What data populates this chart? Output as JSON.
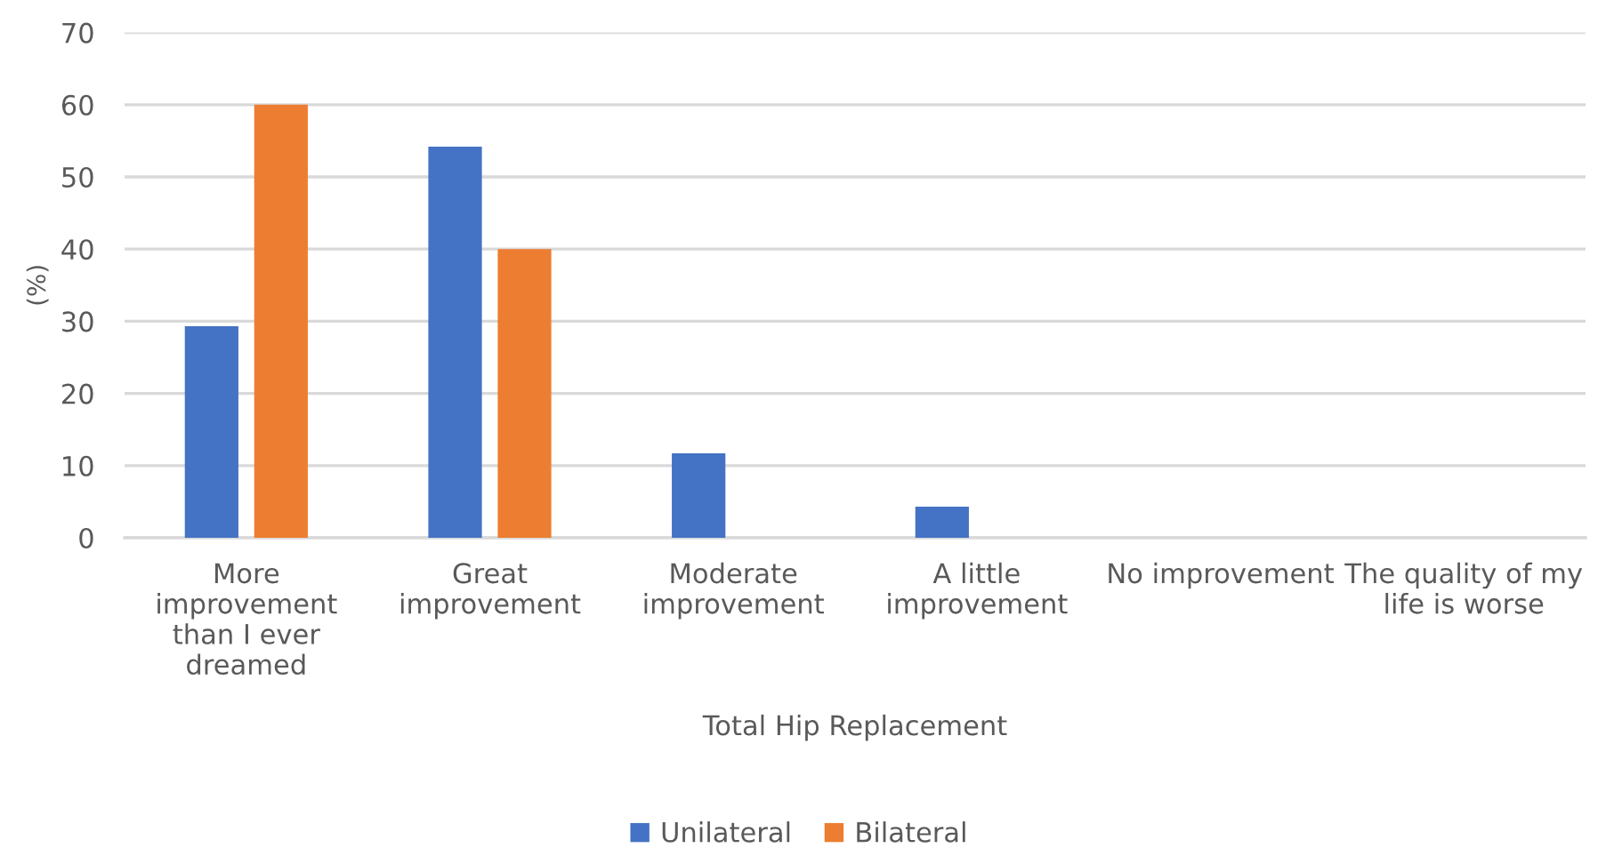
{
  "chart_data": {
    "type": "bar",
    "xlabel": "Total Hip Replacement",
    "ylabel": "(%)",
    "categories": [
      "More improvement than I ever dreamed",
      "Great improvement",
      "Moderate improvement",
      "A little improvement",
      "No improvement",
      "The quality of my life is worse"
    ],
    "series": [
      {
        "name": "Unilateral",
        "color": "#4472c4",
        "values": [
          29.3,
          54.2,
          11.7,
          4.3,
          0,
          0
        ]
      },
      {
        "name": "Bilateral",
        "color": "#ed7d31",
        "values": [
          60,
          40,
          0,
          0,
          0,
          0
        ]
      }
    ],
    "ylim": [
      0,
      70
    ],
    "yticks": [
      0,
      10,
      20,
      30,
      40,
      50,
      60,
      70
    ],
    "grid": "y",
    "legend": "bottom"
  }
}
